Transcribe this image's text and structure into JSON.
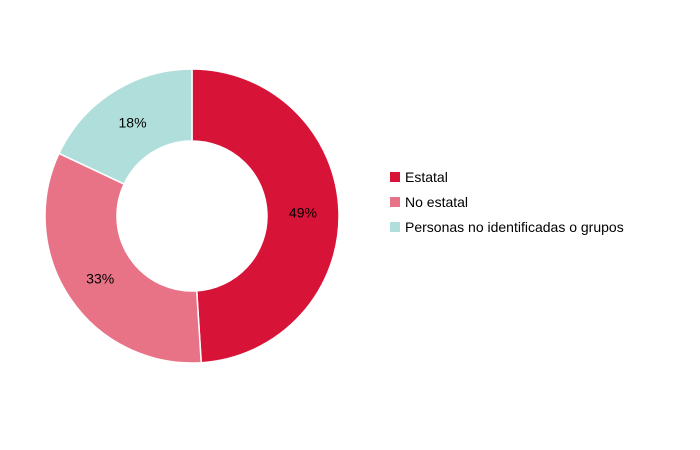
{
  "chart_data": {
    "type": "pie",
    "title": "",
    "donut": true,
    "categories": [
      "Estatal",
      "No estatal",
      "Personas no identificadas o grupos"
    ],
    "values": [
      49,
      33,
      18
    ],
    "data_labels": [
      "49%",
      "33%",
      "18%"
    ],
    "colors": [
      "#d81338",
      "#e87387",
      "#b0dfdb"
    ],
    "legend_position": "right"
  }
}
